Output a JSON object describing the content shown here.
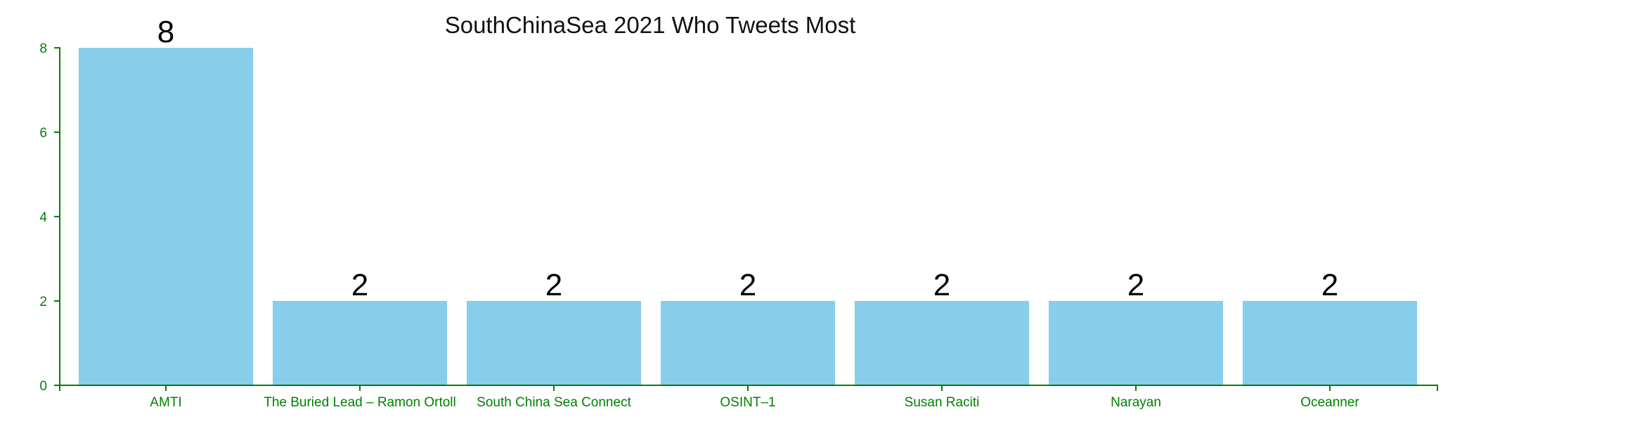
{
  "colors": {
    "bar": "#87CEEB",
    "axis": "#008000",
    "text": "#000000"
  },
  "chart_data": {
    "type": "bar",
    "title": "SouthChinaSea 2021 Who Tweets Most",
    "xlabel": "",
    "ylabel": "",
    "categories": [
      "AMTI",
      "The Buried Lead – Ramon Ortoll",
      "South China Sea Connect",
      "OSINT–1",
      "Susan Raciti",
      "Narayan",
      "Oceanner"
    ],
    "values": [
      8,
      2,
      2,
      2,
      2,
      2,
      2
    ],
    "ylim": [
      0,
      8
    ],
    "yticks": [
      0,
      2,
      4,
      6,
      8
    ],
    "data_labels": true,
    "grid": false,
    "legend": "none"
  }
}
